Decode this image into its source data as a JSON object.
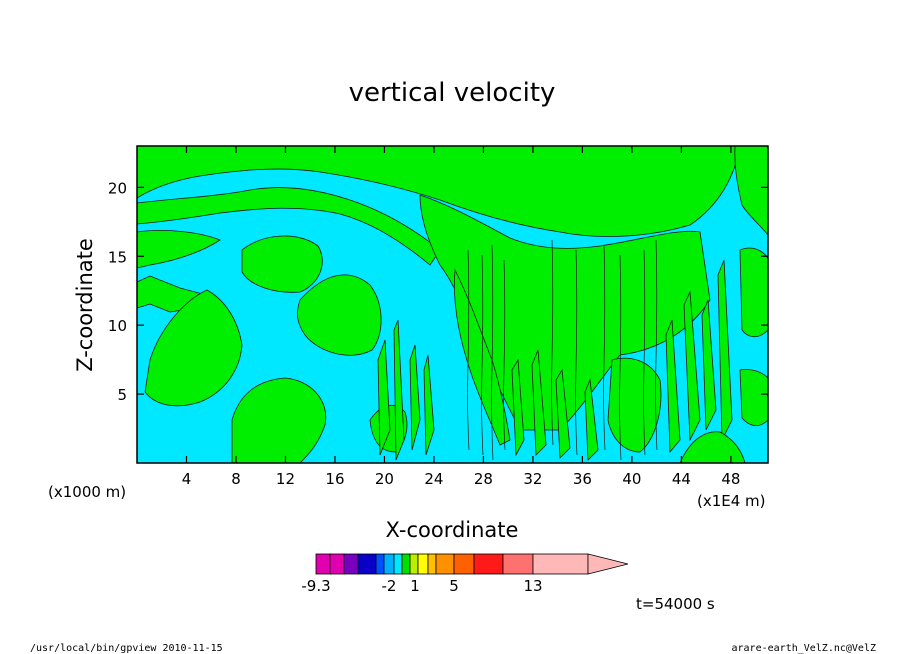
{
  "chart_data": {
    "type": "heatmap",
    "title": "vertical velocity",
    "xlabel": "X-coordinate",
    "ylabel": "Z-coordinate",
    "x_unit_label": "(x1000 m)",
    "x_scale_label": "(x1E4 m)",
    "x_ticks": [
      "4",
      "8",
      "12",
      "16",
      "20",
      "24",
      "28",
      "32",
      "36",
      "40",
      "44",
      "48"
    ],
    "y_ticks": [
      "5",
      "10",
      "15",
      "20"
    ],
    "xlim": [
      0,
      51
    ],
    "ylim": [
      0,
      23
    ],
    "grid": false,
    "colorbar": {
      "labels": [
        "-9.3",
        "-2",
        "1",
        "5",
        "13"
      ],
      "colors": [
        "#e000b0",
        "#e000b0",
        "#7a00c0",
        "#0a00c8",
        "#0050ff",
        "#00b0ff",
        "#00e8ff",
        "#00e000",
        "#b8f000",
        "#ffff00",
        "#ffc000",
        "#ff9000",
        "#ff6000",
        "#ff1a1a",
        "#ff7070",
        "#ffb8b8",
        "#ffb8b8"
      ]
    },
    "field_colors": {
      "negative": "#00e8ff",
      "positive": "#00ee00"
    },
    "time_label": "t=54000 s"
  },
  "footer": {
    "left": "/usr/local/bin/gpview   2010-11-15",
    "right": "arare-earth_VelZ.nc@VelZ"
  }
}
